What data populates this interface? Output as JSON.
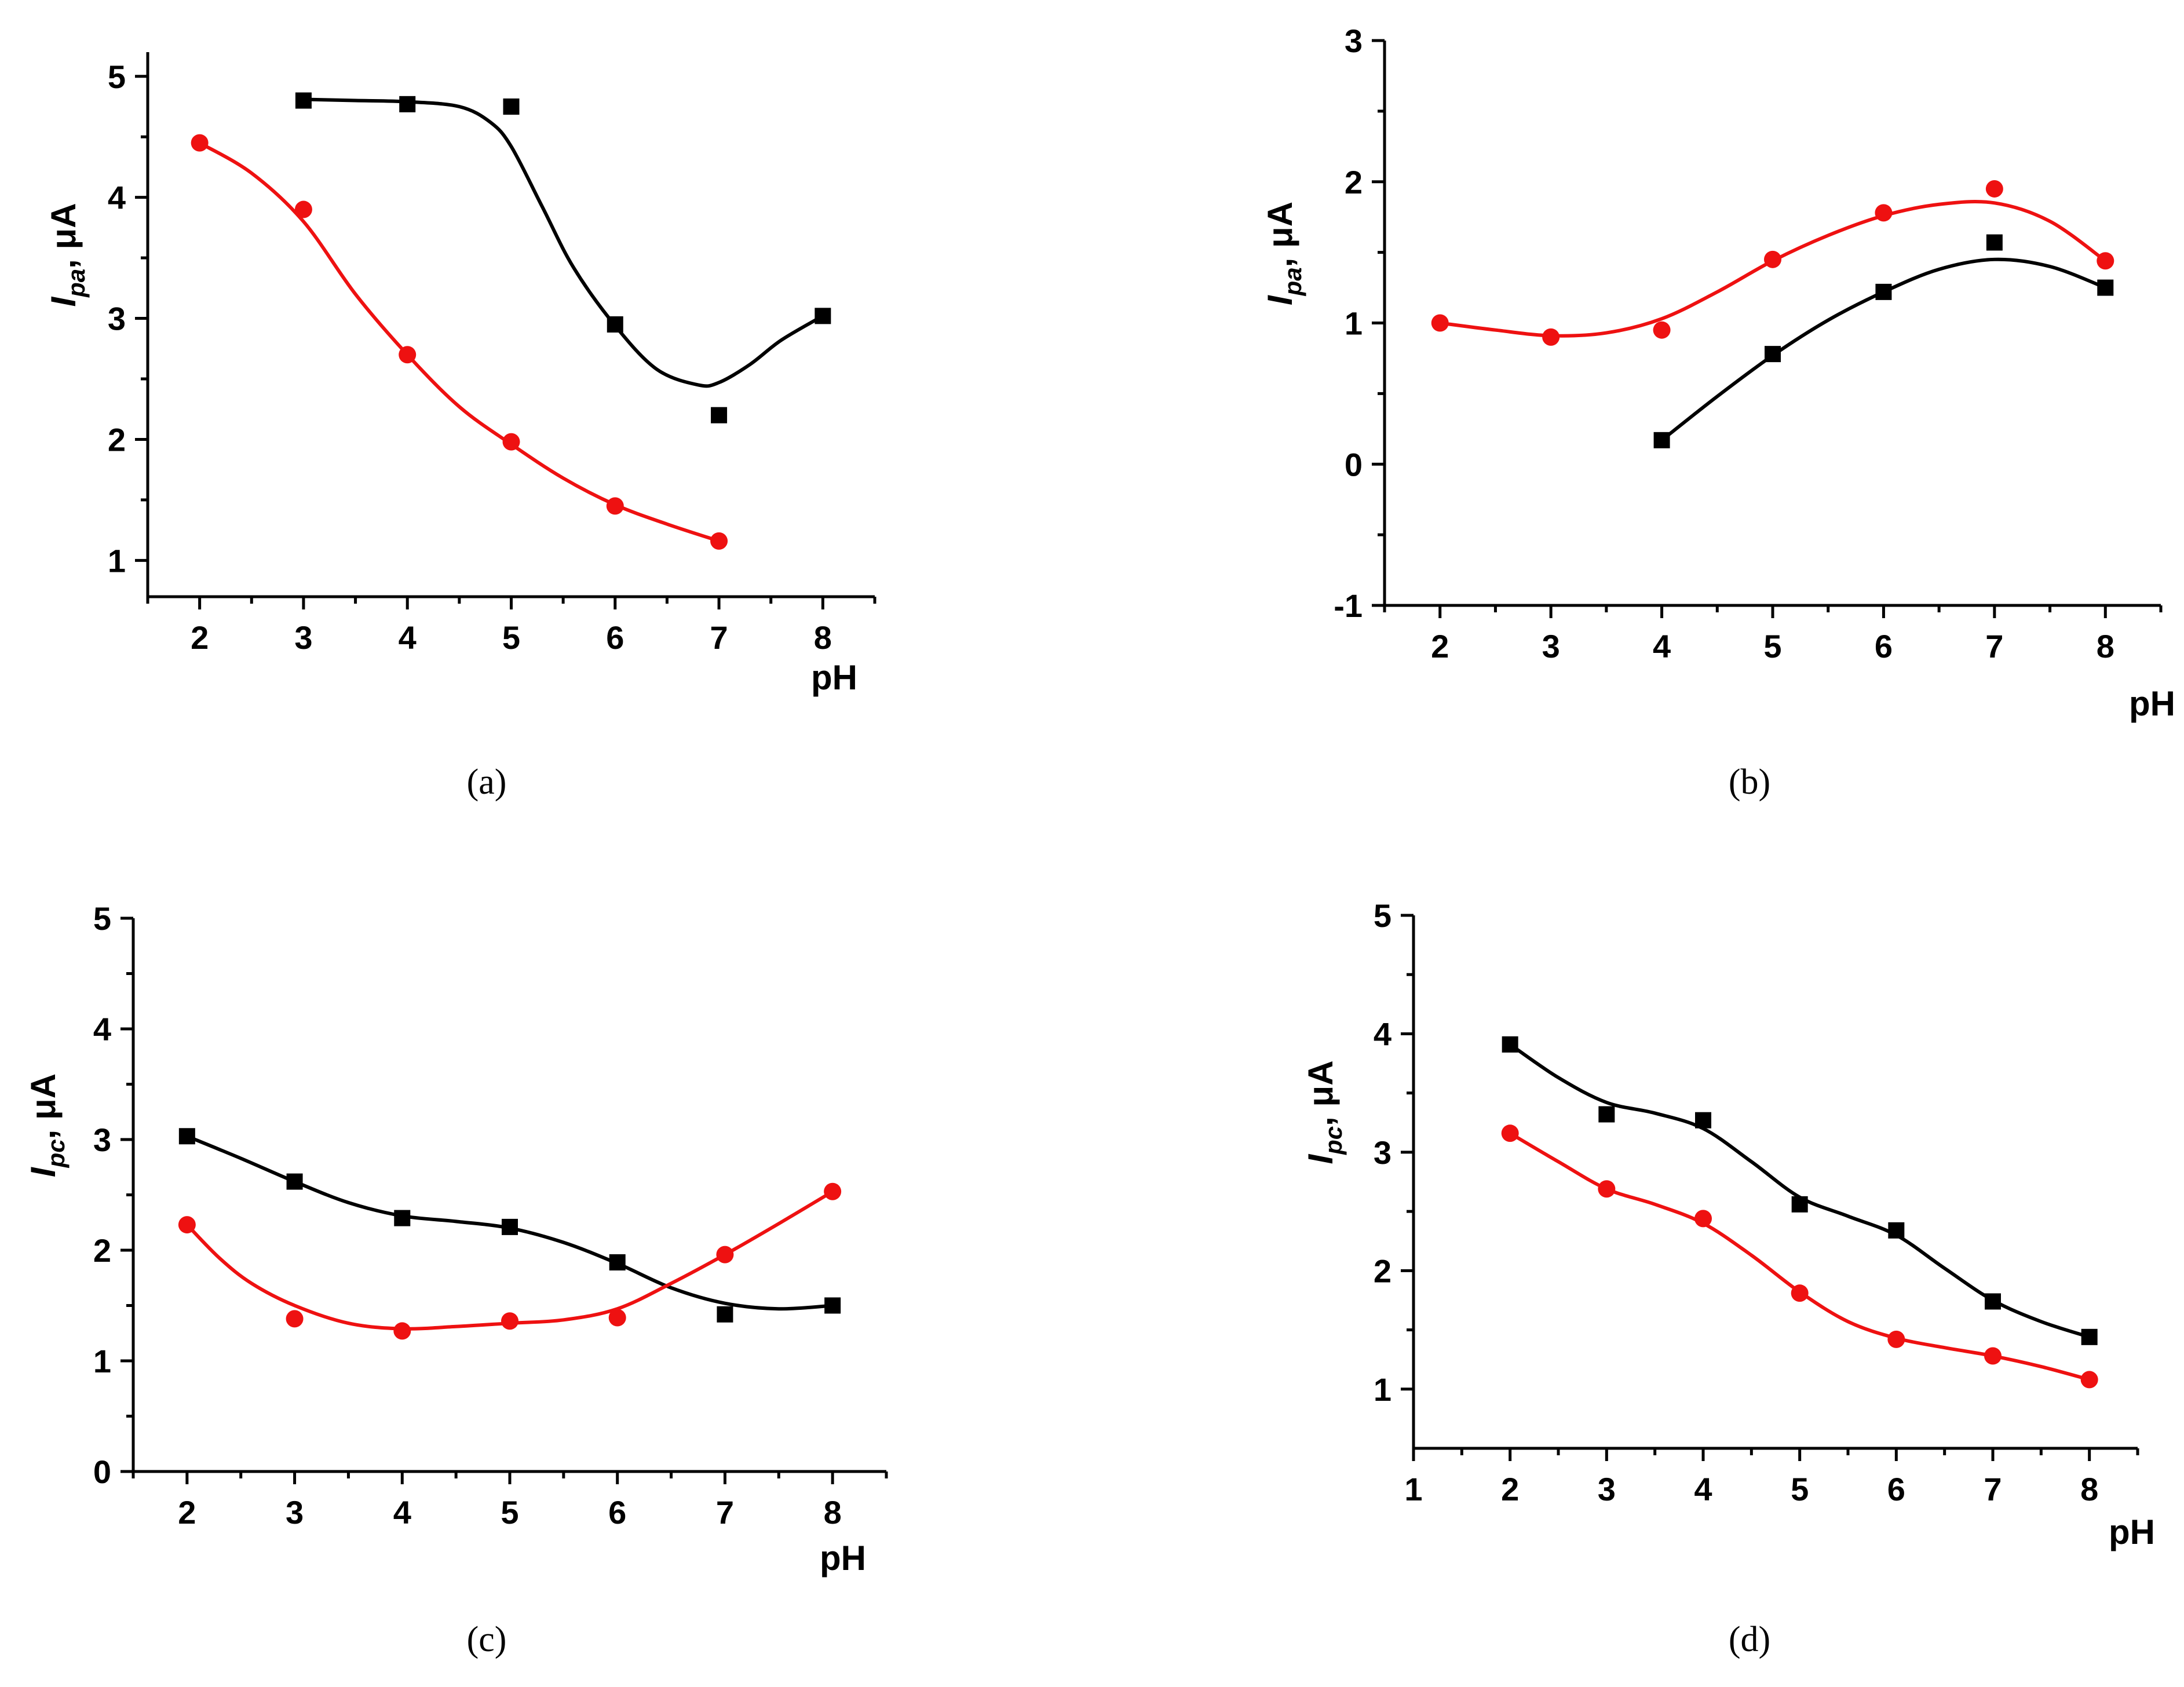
{
  "chart_data": [
    {
      "id": "a",
      "type": "scatter",
      "caption": "(a)",
      "ylabel_main": "I",
      "ylabel_sub": "pa",
      "ylabel_unit": ", μA",
      "xlabel": "pH",
      "xlim": [
        1.5,
        8.5
      ],
      "ylim": [
        0.7,
        5.2
      ],
      "xticks": [
        "2",
        "3",
        "4",
        "5",
        "6",
        "7",
        "8"
      ],
      "yticks": [
        "1",
        "2",
        "3",
        "4",
        "5"
      ],
      "series": [
        {
          "name": "black",
          "color": "#000000",
          "marker": "square",
          "x": [
            3,
            4,
            5,
            6,
            7,
            8
          ],
          "y": [
            4.8,
            4.77,
            4.75,
            2.95,
            2.2,
            3.02
          ],
          "fit_x": [
            3,
            3.5,
            4,
            4.5,
            4.8,
            5.0,
            5.3,
            5.6,
            6.0,
            6.4,
            6.8,
            7.0,
            7.3,
            7.6,
            8.0
          ],
          "fit_y": [
            4.81,
            4.8,
            4.79,
            4.75,
            4.62,
            4.42,
            3.92,
            3.42,
            2.94,
            2.58,
            2.45,
            2.47,
            2.62,
            2.82,
            3.02
          ]
        },
        {
          "name": "red",
          "color": "#ee1111",
          "marker": "circle",
          "x": [
            2,
            3,
            4,
            5,
            6,
            7
          ],
          "y": [
            4.45,
            3.9,
            2.7,
            1.98,
            1.45,
            1.16
          ],
          "fit_x": [
            2,
            2.5,
            3,
            3.5,
            4,
            4.5,
            5,
            5.5,
            6,
            6.5,
            7
          ],
          "fit_y": [
            4.45,
            4.2,
            3.8,
            3.2,
            2.7,
            2.27,
            1.96,
            1.68,
            1.46,
            1.3,
            1.16
          ]
        }
      ]
    },
    {
      "id": "b",
      "type": "scatter",
      "caption": "(b)",
      "ylabel_main": "I",
      "ylabel_sub": "pa",
      "ylabel_unit": ", μA",
      "xlabel": "pH",
      "xlim": [
        1.5,
        8.5
      ],
      "ylim": [
        -1,
        3
      ],
      "xticks": [
        "2",
        "3",
        "4",
        "5",
        "6",
        "7",
        "8"
      ],
      "yticks": [
        "-1",
        "0",
        "1",
        "2",
        "3"
      ],
      "series": [
        {
          "name": "black",
          "color": "#000000",
          "marker": "square",
          "x": [
            4,
            5,
            6,
            7,
            8
          ],
          "y": [
            0.17,
            0.78,
            1.22,
            1.57,
            1.25
          ],
          "fit_x": [
            4,
            4.5,
            5,
            5.5,
            6,
            6.5,
            7,
            7.5,
            8
          ],
          "fit_y": [
            0.17,
            0.48,
            0.77,
            1.02,
            1.22,
            1.38,
            1.45,
            1.4,
            1.25
          ]
        },
        {
          "name": "red",
          "color": "#ee1111",
          "marker": "circle",
          "x": [
            2,
            3,
            4,
            5,
            6,
            7,
            8
          ],
          "y": [
            1.0,
            0.9,
            0.95,
            1.45,
            1.78,
            1.95,
            1.44
          ],
          "fit_x": [
            2,
            2.5,
            3,
            3.5,
            4,
            4.5,
            5,
            5.5,
            6,
            6.5,
            7,
            7.5,
            8
          ],
          "fit_y": [
            1.0,
            0.95,
            0.91,
            0.93,
            1.03,
            1.22,
            1.44,
            1.62,
            1.76,
            1.84,
            1.85,
            1.72,
            1.44
          ]
        }
      ]
    },
    {
      "id": "c",
      "type": "scatter",
      "caption": "(c)",
      "ylabel_main": "I",
      "ylabel_sub": "pc",
      "ylabel_unit": ", μA",
      "xlabel": "pH",
      "xlim": [
        1.5,
        8.5
      ],
      "ylim": [
        0,
        5
      ],
      "xticks": [
        "2",
        "3",
        "4",
        "5",
        "6",
        "7",
        "8"
      ],
      "yticks": [
        "0",
        "1",
        "2",
        "3",
        "4",
        "5"
      ],
      "series": [
        {
          "name": "black",
          "color": "#000000",
          "marker": "square",
          "x": [
            2,
            3,
            4,
            5,
            6,
            7,
            8
          ],
          "y": [
            3.03,
            2.62,
            2.29,
            2.21,
            1.89,
            1.42,
            1.5
          ],
          "fit_x": [
            2,
            2.5,
            3,
            3.5,
            4,
            4.5,
            5,
            5.5,
            6,
            6.5,
            7,
            7.5,
            8
          ],
          "fit_y": [
            3.03,
            2.83,
            2.62,
            2.43,
            2.31,
            2.26,
            2.2,
            2.07,
            1.88,
            1.66,
            1.52,
            1.47,
            1.5
          ]
        },
        {
          "name": "red",
          "color": "#ee1111",
          "marker": "circle",
          "x": [
            2,
            3,
            4,
            5,
            6,
            7,
            8
          ],
          "y": [
            2.23,
            1.38,
            1.27,
            1.36,
            1.39,
            1.96,
            2.53
          ],
          "fit_x": [
            2,
            2.3,
            2.6,
            3,
            3.5,
            4,
            4.5,
            5,
            5.5,
            6,
            6.5,
            7,
            7.5,
            8
          ],
          "fit_y": [
            2.23,
            1.93,
            1.7,
            1.5,
            1.34,
            1.29,
            1.31,
            1.34,
            1.37,
            1.47,
            1.7,
            1.96,
            2.24,
            2.53
          ]
        }
      ]
    },
    {
      "id": "d",
      "type": "scatter",
      "caption": "(d)",
      "ylabel_main": "I",
      "ylabel_sub": "pc",
      "ylabel_unit": ", μA",
      "xlabel": "pH",
      "xlim": [
        1,
        8.5
      ],
      "ylim": [
        0.5,
        5
      ],
      "xticks": [
        "1",
        "2",
        "3",
        "4",
        "5",
        "6",
        "7",
        "8"
      ],
      "yticks": [
        "1",
        "2",
        "3",
        "4",
        "5"
      ],
      "series": [
        {
          "name": "black",
          "color": "#000000",
          "marker": "square",
          "x": [
            2,
            3,
            4,
            5,
            6,
            7,
            8
          ],
          "y": [
            3.91,
            3.32,
            3.27,
            2.56,
            2.34,
            1.74,
            1.44
          ],
          "fit_x": [
            2,
            2.5,
            3,
            3.5,
            4,
            4.5,
            5,
            5.5,
            6,
            6.5,
            7,
            7.5,
            8
          ],
          "fit_y": [
            3.91,
            3.63,
            3.42,
            3.33,
            3.2,
            2.92,
            2.62,
            2.46,
            2.3,
            2.02,
            1.75,
            1.57,
            1.44
          ]
        },
        {
          "name": "red",
          "color": "#ee1111",
          "marker": "circle",
          "x": [
            2,
            3,
            4,
            5,
            6,
            7,
            8
          ],
          "y": [
            3.16,
            2.69,
            2.44,
            1.81,
            1.42,
            1.28,
            1.08
          ],
          "fit_x": [
            2,
            2.5,
            3,
            3.5,
            4,
            4.5,
            5,
            5.5,
            6,
            6.5,
            7,
            7.5,
            8
          ],
          "fit_y": [
            3.16,
            2.92,
            2.69,
            2.56,
            2.4,
            2.13,
            1.82,
            1.57,
            1.43,
            1.35,
            1.28,
            1.19,
            1.08
          ]
        }
      ]
    }
  ]
}
